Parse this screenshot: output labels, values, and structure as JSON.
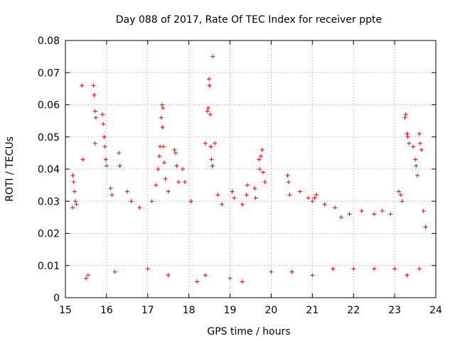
{
  "chart_data": {
    "type": "scatter",
    "title": "Day 088 of 2017, Rate Of TEC Index for receiver ppte",
    "xlabel": "GPS time / hours",
    "ylabel": "ROTI / TECUs",
    "xlim": [
      15,
      24
    ],
    "ylim": [
      0,
      0.08
    ],
    "xticks": [
      "15",
      "16",
      "17",
      "18",
      "19",
      "20",
      "21",
      "22",
      "23",
      "24"
    ],
    "yticks": [
      "0",
      "0.01",
      "0.02",
      "0.03",
      "0.04",
      "0.05",
      "0.06",
      "0.07",
      "0.08"
    ],
    "grid": true,
    "legend": "none",
    "marker": "+",
    "colors": {
      "series": "#ff0000",
      "axis": "#000000",
      "grid": "#a0a0a0"
    },
    "series": [
      {
        "points": [
          [
            15.18,
            0.038
          ],
          [
            15.2,
            0.036
          ],
          [
            15.22,
            0.033
          ],
          [
            15.24,
            0.03
          ],
          [
            15.17,
            0.028
          ],
          [
            15.27,
            0.029
          ],
          [
            15.4,
            0.066
          ],
          [
            15.42,
            0.043
          ],
          [
            15.68,
            0.066
          ],
          [
            15.7,
            0.063
          ],
          [
            15.72,
            0.058
          ],
          [
            15.74,
            0.056
          ],
          [
            15.72,
            0.048
          ],
          [
            15.9,
            0.057
          ],
          [
            15.92,
            0.054
          ],
          [
            15.94,
            0.05
          ],
          [
            15.96,
            0.047
          ],
          [
            15.98,
            0.043
          ],
          [
            16.0,
            0.041
          ],
          [
            16.1,
            0.034
          ],
          [
            16.13,
            0.032
          ],
          [
            16.3,
            0.045
          ],
          [
            16.32,
            0.041
          ],
          [
            16.5,
            0.033
          ],
          [
            16.6,
            0.03
          ],
          [
            16.8,
            0.028
          ],
          [
            17.1,
            0.03
          ],
          [
            17.2,
            0.035
          ],
          [
            17.25,
            0.04
          ],
          [
            17.28,
            0.044
          ],
          [
            17.3,
            0.047
          ],
          [
            17.33,
            0.056
          ],
          [
            17.35,
            0.06
          ],
          [
            17.37,
            0.059
          ],
          [
            17.36,
            0.053
          ],
          [
            17.38,
            0.047
          ],
          [
            17.4,
            0.042
          ],
          [
            17.43,
            0.037
          ],
          [
            17.5,
            0.033
          ],
          [
            17.65,
            0.046
          ],
          [
            17.68,
            0.045
          ],
          [
            17.7,
            0.041
          ],
          [
            17.75,
            0.036
          ],
          [
            17.85,
            0.04
          ],
          [
            17.9,
            0.036
          ],
          [
            18.05,
            0.03
          ],
          [
            18.4,
            0.048
          ],
          [
            18.45,
            0.058
          ],
          [
            18.47,
            0.059
          ],
          [
            18.49,
            0.068
          ],
          [
            18.5,
            0.066
          ],
          [
            18.52,
            0.057
          ],
          [
            18.53,
            0.047
          ],
          [
            18.55,
            0.043
          ],
          [
            18.58,
            0.075
          ],
          [
            18.57,
            0.041
          ],
          [
            18.63,
            0.048
          ],
          [
            18.7,
            0.032
          ],
          [
            18.8,
            0.029
          ],
          [
            19.05,
            0.033
          ],
          [
            19.1,
            0.031
          ],
          [
            19.3,
            0.029
          ],
          [
            19.4,
            0.032
          ],
          [
            19.42,
            0.035
          ],
          [
            19.6,
            0.034
          ],
          [
            19.62,
            0.031
          ],
          [
            19.7,
            0.043
          ],
          [
            19.72,
            0.04
          ],
          [
            19.75,
            0.044
          ],
          [
            19.78,
            0.046
          ],
          [
            19.8,
            0.039
          ],
          [
            19.85,
            0.036
          ],
          [
            20.4,
            0.038
          ],
          [
            20.42,
            0.036
          ],
          [
            20.45,
            0.032
          ],
          [
            20.7,
            0.033
          ],
          [
            20.9,
            0.031
          ],
          [
            21.0,
            0.03
          ],
          [
            21.05,
            0.031
          ],
          [
            21.1,
            0.032
          ],
          [
            21.3,
            0.029
          ],
          [
            21.55,
            0.028
          ],
          [
            21.7,
            0.025
          ],
          [
            21.9,
            0.026
          ],
          [
            22.2,
            0.027
          ],
          [
            22.5,
            0.026
          ],
          [
            22.7,
            0.027
          ],
          [
            22.9,
            0.026
          ],
          [
            23.1,
            0.033
          ],
          [
            23.15,
            0.032
          ],
          [
            23.18,
            0.03
          ],
          [
            23.25,
            0.056
          ],
          [
            23.27,
            0.057
          ],
          [
            23.3,
            0.051
          ],
          [
            23.32,
            0.05
          ],
          [
            23.35,
            0.048
          ],
          [
            23.45,
            0.047
          ],
          [
            23.5,
            0.043
          ],
          [
            23.52,
            0.041
          ],
          [
            23.55,
            0.038
          ],
          [
            23.6,
            0.051
          ],
          [
            23.62,
            0.048
          ],
          [
            23.65,
            0.046
          ],
          [
            23.7,
            0.027
          ],
          [
            23.75,
            0.022
          ],
          [
            15.5,
            0.006
          ],
          [
            15.55,
            0.007
          ],
          [
            16.2,
            0.008
          ],
          [
            17.0,
            0.009
          ],
          [
            17.5,
            0.007
          ],
          [
            18.2,
            0.005
          ],
          [
            18.4,
            0.007
          ],
          [
            19.0,
            0.006
          ],
          [
            19.3,
            0.005
          ],
          [
            20.0,
            0.008
          ],
          [
            20.5,
            0.008
          ],
          [
            21.0,
            0.007
          ],
          [
            21.5,
            0.009
          ],
          [
            22.0,
            0.009
          ],
          [
            22.5,
            0.009
          ],
          [
            23.0,
            0.009
          ],
          [
            23.3,
            0.007
          ],
          [
            23.6,
            0.009
          ]
        ]
      }
    ]
  }
}
